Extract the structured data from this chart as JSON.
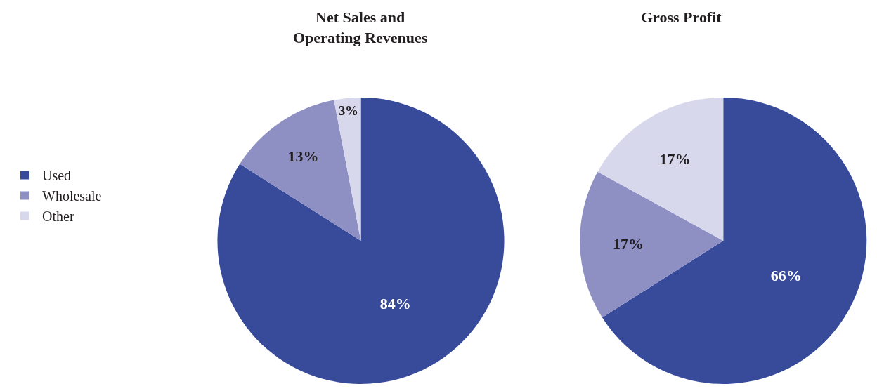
{
  "chart_data": [
    {
      "type": "pie",
      "title": "Net Sales and\nOperating Revenues",
      "categories": [
        "Used",
        "Wholesale",
        "Other"
      ],
      "values": [
        84,
        13,
        3
      ],
      "value_labels": [
        "84%",
        "13%",
        "3%"
      ],
      "colors": [
        "#384b9b",
        "#8e90c4",
        "#d8d8ec"
      ],
      "legend": "left"
    },
    {
      "type": "pie",
      "title": "Gross Profit",
      "categories": [
        null,
        null,
        null
      ],
      "values": [
        66,
        17,
        17
      ],
      "value_labels": [
        "66%",
        "17%",
        "17%"
      ],
      "colors": [
        "#384b9b",
        "#8e90c4",
        "#d8d8ec"
      ]
    }
  ]
}
